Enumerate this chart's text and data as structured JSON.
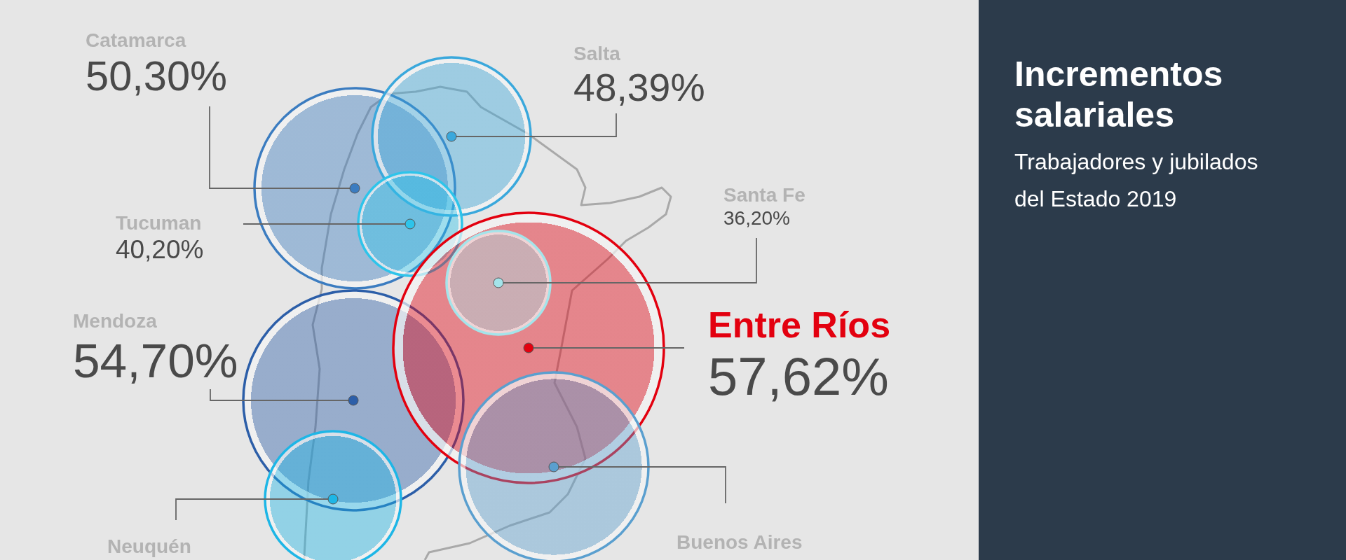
{
  "chart_data": {
    "type": "other",
    "title": "Incrementos salariales",
    "subtitle": "Trabajadores y jubilados del Estado 2019",
    "categories": [
      "Catamarca",
      "Salta",
      "Tucuman",
      "Mendoza",
      "Entre Ríos",
      "Santa Fe",
      "Neuquén",
      "Buenos Aires"
    ],
    "values": [
      50.3,
      48.39,
      40.2,
      54.7,
      57.62,
      36.2,
      null,
      null
    ],
    "value_labels": [
      "50,30%",
      "48,39%",
      "40,20%",
      "54,70%",
      "57,62%",
      "36,20%",
      null,
      null
    ],
    "colors": [
      "#3b7cc0",
      "#3aa8dc",
      "#2ec4ea",
      "#2c5ea8",
      "#e3000f",
      "#a4e4ea",
      "#1eb6e6",
      "#5a9fcf"
    ]
  }
}
